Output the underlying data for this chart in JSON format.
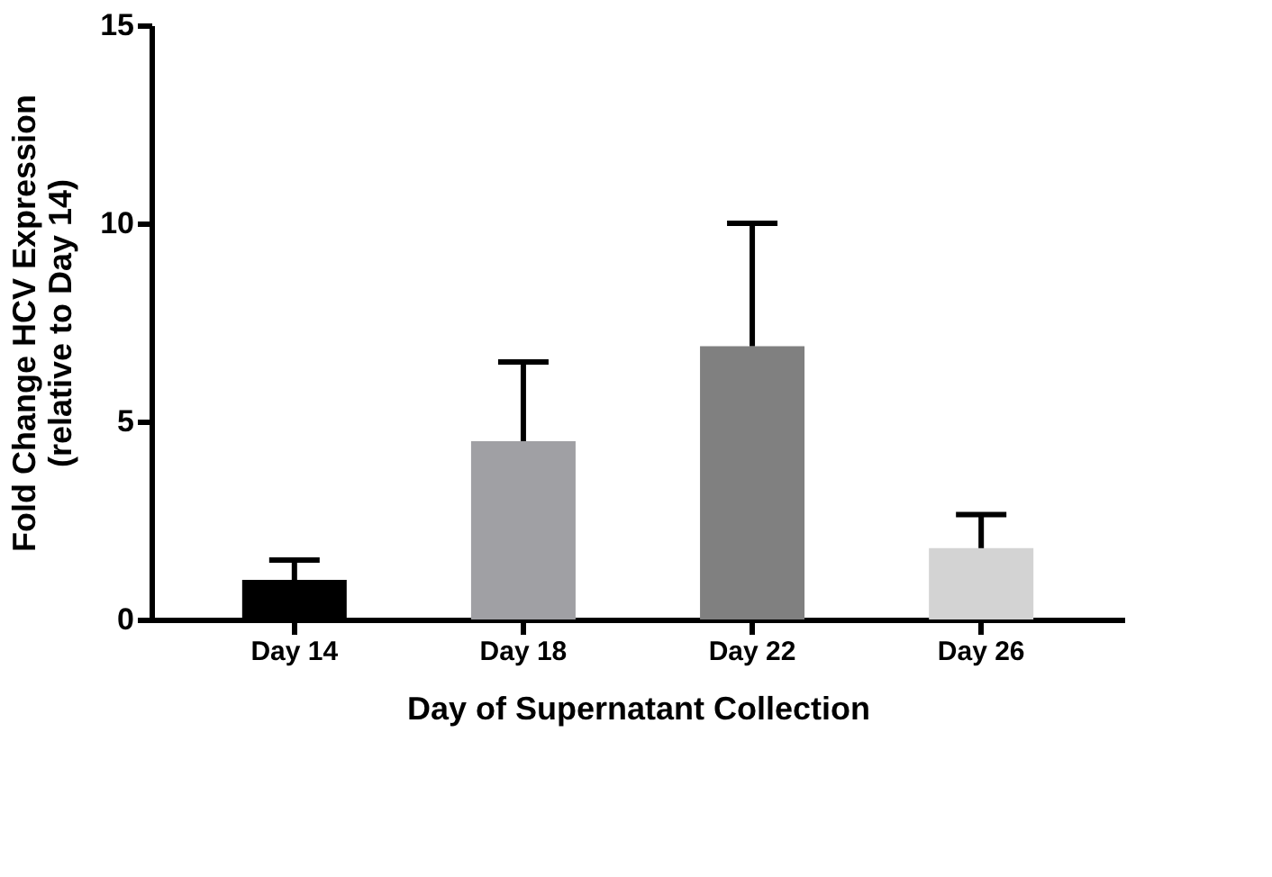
{
  "chart_data": {
    "type": "bar",
    "xlabel": "Day of Supernatant Collection",
    "ylabel": "Fold Change HCV Expression\n(relative to Day 14)",
    "categories": [
      "Day 14",
      "Day 18",
      "Day 22",
      "Day 26"
    ],
    "values": [
      1.0,
      4.5,
      6.9,
      1.8
    ],
    "colors": [
      "#000000",
      "#a0a0a4",
      "#808080",
      "#d3d3d3"
    ],
    "errors": [
      [
        1.0,
        1.5
      ],
      [
        4.5,
        6.5
      ],
      [
        6.9,
        10.0
      ],
      [
        1.8,
        2.65
      ]
    ],
    "ylim": [
      0,
      15
    ],
    "yticks": [
      0,
      5,
      10,
      15
    ],
    "grid": false
  }
}
